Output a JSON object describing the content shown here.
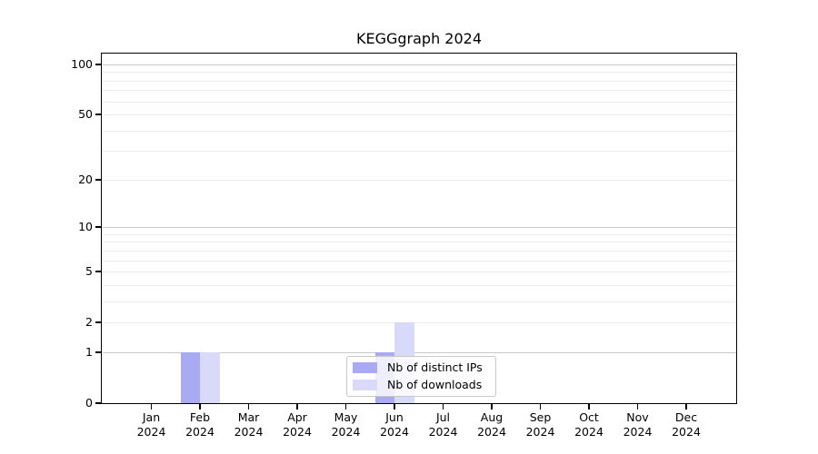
{
  "chart_data": {
    "type": "bar",
    "title": "KEGGgraph 2024",
    "x": {
      "months": [
        "Jan",
        "Feb",
        "Mar",
        "Apr",
        "May",
        "Jun",
        "Jul",
        "Aug",
        "Sep",
        "Oct",
        "Nov",
        "Dec"
      ],
      "year": "2024"
    },
    "series": [
      {
        "name": "Nb of distinct IPs",
        "color": "#a9a9f4",
        "values": [
          0,
          1,
          0,
          0,
          0,
          1,
          0,
          0,
          0,
          0,
          0,
          0
        ]
      },
      {
        "name": "Nb of downloads",
        "color": "#d9d9f9",
        "values": [
          0,
          1,
          0,
          0,
          0,
          2,
          0,
          0,
          0,
          0,
          0,
          0
        ]
      }
    ],
    "y_axis": {
      "scale": "log1p",
      "tick_values": [
        0,
        1,
        2,
        5,
        10,
        20,
        50,
        100
      ],
      "range": [
        0,
        115
      ]
    },
    "grid": {
      "major_values": [
        1,
        10,
        100
      ],
      "minor_values": [
        2,
        3,
        4,
        5,
        6,
        7,
        8,
        9,
        20,
        30,
        40,
        50,
        60,
        70,
        80,
        90
      ],
      "major_color": "#c9c9c9",
      "minor_color": "#ebebeb"
    },
    "legend_position": "bottom-center"
  }
}
